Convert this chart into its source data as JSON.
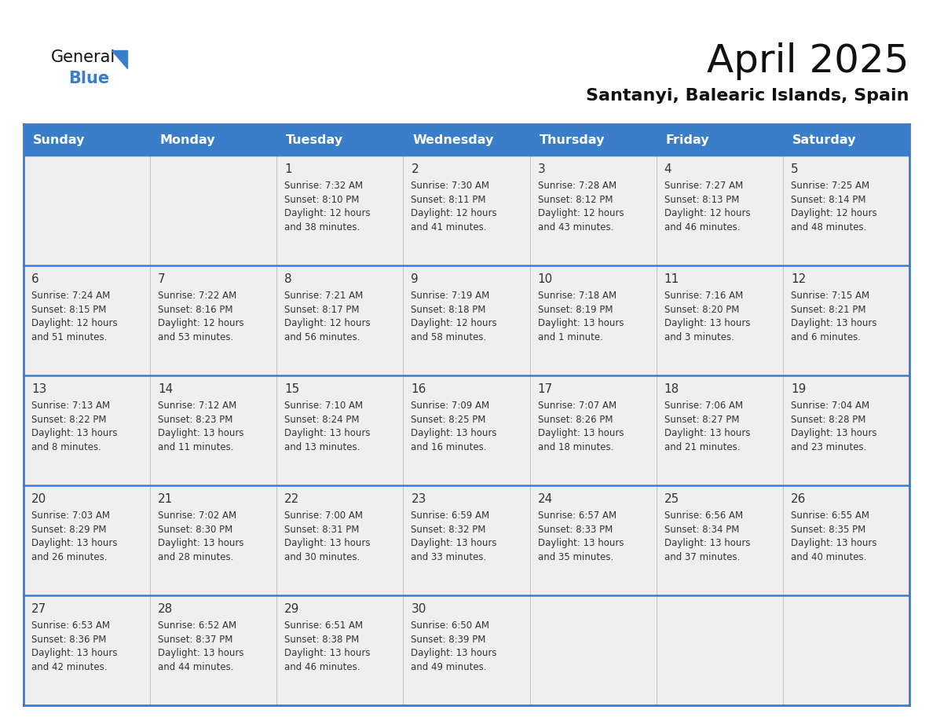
{
  "title": "April 2025",
  "subtitle": "Santanyi, Balearic Islands, Spain",
  "header_bg_color": "#3A7DC9",
  "header_text_color": "#FFFFFF",
  "cell_bg_odd": "#EFEFEF",
  "cell_bg_even": "#EFEFEF",
  "row_divider_color": "#3A7DC9",
  "col_divider_color": "#BBBBBB",
  "outer_border_color": "#3A7DC9",
  "text_color": "#333333",
  "days_of_week": [
    "Sunday",
    "Monday",
    "Tuesday",
    "Wednesday",
    "Thursday",
    "Friday",
    "Saturday"
  ],
  "weeks": [
    [
      {
        "day": "",
        "info": ""
      },
      {
        "day": "",
        "info": ""
      },
      {
        "day": "1",
        "info": "Sunrise: 7:32 AM\nSunset: 8:10 PM\nDaylight: 12 hours\nand 38 minutes."
      },
      {
        "day": "2",
        "info": "Sunrise: 7:30 AM\nSunset: 8:11 PM\nDaylight: 12 hours\nand 41 minutes."
      },
      {
        "day": "3",
        "info": "Sunrise: 7:28 AM\nSunset: 8:12 PM\nDaylight: 12 hours\nand 43 minutes."
      },
      {
        "day": "4",
        "info": "Sunrise: 7:27 AM\nSunset: 8:13 PM\nDaylight: 12 hours\nand 46 minutes."
      },
      {
        "day": "5",
        "info": "Sunrise: 7:25 AM\nSunset: 8:14 PM\nDaylight: 12 hours\nand 48 minutes."
      }
    ],
    [
      {
        "day": "6",
        "info": "Sunrise: 7:24 AM\nSunset: 8:15 PM\nDaylight: 12 hours\nand 51 minutes."
      },
      {
        "day": "7",
        "info": "Sunrise: 7:22 AM\nSunset: 8:16 PM\nDaylight: 12 hours\nand 53 minutes."
      },
      {
        "day": "8",
        "info": "Sunrise: 7:21 AM\nSunset: 8:17 PM\nDaylight: 12 hours\nand 56 minutes."
      },
      {
        "day": "9",
        "info": "Sunrise: 7:19 AM\nSunset: 8:18 PM\nDaylight: 12 hours\nand 58 minutes."
      },
      {
        "day": "10",
        "info": "Sunrise: 7:18 AM\nSunset: 8:19 PM\nDaylight: 13 hours\nand 1 minute."
      },
      {
        "day": "11",
        "info": "Sunrise: 7:16 AM\nSunset: 8:20 PM\nDaylight: 13 hours\nand 3 minutes."
      },
      {
        "day": "12",
        "info": "Sunrise: 7:15 AM\nSunset: 8:21 PM\nDaylight: 13 hours\nand 6 minutes."
      }
    ],
    [
      {
        "day": "13",
        "info": "Sunrise: 7:13 AM\nSunset: 8:22 PM\nDaylight: 13 hours\nand 8 minutes."
      },
      {
        "day": "14",
        "info": "Sunrise: 7:12 AM\nSunset: 8:23 PM\nDaylight: 13 hours\nand 11 minutes."
      },
      {
        "day": "15",
        "info": "Sunrise: 7:10 AM\nSunset: 8:24 PM\nDaylight: 13 hours\nand 13 minutes."
      },
      {
        "day": "16",
        "info": "Sunrise: 7:09 AM\nSunset: 8:25 PM\nDaylight: 13 hours\nand 16 minutes."
      },
      {
        "day": "17",
        "info": "Sunrise: 7:07 AM\nSunset: 8:26 PM\nDaylight: 13 hours\nand 18 minutes."
      },
      {
        "day": "18",
        "info": "Sunrise: 7:06 AM\nSunset: 8:27 PM\nDaylight: 13 hours\nand 21 minutes."
      },
      {
        "day": "19",
        "info": "Sunrise: 7:04 AM\nSunset: 8:28 PM\nDaylight: 13 hours\nand 23 minutes."
      }
    ],
    [
      {
        "day": "20",
        "info": "Sunrise: 7:03 AM\nSunset: 8:29 PM\nDaylight: 13 hours\nand 26 minutes."
      },
      {
        "day": "21",
        "info": "Sunrise: 7:02 AM\nSunset: 8:30 PM\nDaylight: 13 hours\nand 28 minutes."
      },
      {
        "day": "22",
        "info": "Sunrise: 7:00 AM\nSunset: 8:31 PM\nDaylight: 13 hours\nand 30 minutes."
      },
      {
        "day": "23",
        "info": "Sunrise: 6:59 AM\nSunset: 8:32 PM\nDaylight: 13 hours\nand 33 minutes."
      },
      {
        "day": "24",
        "info": "Sunrise: 6:57 AM\nSunset: 8:33 PM\nDaylight: 13 hours\nand 35 minutes."
      },
      {
        "day": "25",
        "info": "Sunrise: 6:56 AM\nSunset: 8:34 PM\nDaylight: 13 hours\nand 37 minutes."
      },
      {
        "day": "26",
        "info": "Sunrise: 6:55 AM\nSunset: 8:35 PM\nDaylight: 13 hours\nand 40 minutes."
      }
    ],
    [
      {
        "day": "27",
        "info": "Sunrise: 6:53 AM\nSunset: 8:36 PM\nDaylight: 13 hours\nand 42 minutes."
      },
      {
        "day": "28",
        "info": "Sunrise: 6:52 AM\nSunset: 8:37 PM\nDaylight: 13 hours\nand 44 minutes."
      },
      {
        "day": "29",
        "info": "Sunrise: 6:51 AM\nSunset: 8:38 PM\nDaylight: 13 hours\nand 46 minutes."
      },
      {
        "day": "30",
        "info": "Sunrise: 6:50 AM\nSunset: 8:39 PM\nDaylight: 13 hours\nand 49 minutes."
      },
      {
        "day": "",
        "info": ""
      },
      {
        "day": "",
        "info": ""
      },
      {
        "day": "",
        "info": ""
      }
    ]
  ],
  "title_fontsize": 36,
  "subtitle_fontsize": 16,
  "header_fontsize": 11.5,
  "day_num_fontsize": 11,
  "info_fontsize": 8.5,
  "logo_general_fontsize": 15,
  "logo_blue_fontsize": 15
}
